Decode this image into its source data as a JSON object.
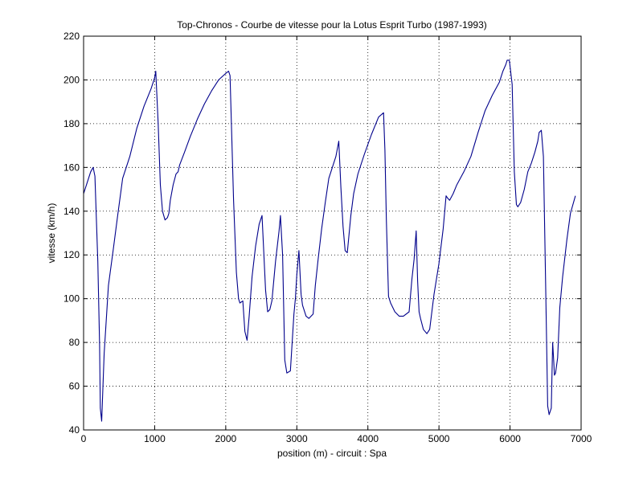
{
  "chart_data": {
    "type": "line",
    "title": "Top-Chronos - Courbe de vitesse pour la Lotus Esprit Turbo (1987-1993)",
    "xlabel": "position (m) - circuit : Spa",
    "ylabel": "vitesse (km/h)",
    "xlim": [
      0,
      7000
    ],
    "ylim": [
      40,
      220
    ],
    "xticks": [
      0,
      1000,
      2000,
      3000,
      4000,
      5000,
      6000,
      7000
    ],
    "yticks": [
      40,
      60,
      80,
      100,
      120,
      140,
      160,
      180,
      200,
      220
    ],
    "grid": true,
    "line_color": "#00008B",
    "series": [
      {
        "x": [
          0,
          50,
          100,
          135,
          160,
          200,
          225,
          235,
          255,
          290,
          350,
          420,
          480,
          550,
          650,
          750,
          850,
          950,
          1000,
          1015,
          1050,
          1080,
          1110,
          1145,
          1180,
          1200,
          1220,
          1260,
          1300,
          1330,
          1350,
          1420,
          1500,
          1600,
          1700,
          1800,
          1900,
          2000,
          2040,
          2060,
          2080,
          2110,
          2150,
          2180,
          2200,
          2240,
          2270,
          2300,
          2330,
          2370,
          2420,
          2470,
          2510,
          2530,
          2560,
          2590,
          2620,
          2650,
          2700,
          2750,
          2770,
          2800,
          2830,
          2860,
          2910,
          2960,
          2980,
          3000,
          3030,
          3060,
          3080,
          3130,
          3170,
          3230,
          3260,
          3300,
          3350,
          3400,
          3450,
          3500,
          3550,
          3590,
          3620,
          3650,
          3680,
          3710,
          3760,
          3800,
          3860,
          3950,
          4050,
          4150,
          4220,
          4240,
          4260,
          4290,
          4320,
          4380,
          4440,
          4500,
          4580,
          4620,
          4650,
          4680,
          4700,
          4720,
          4740,
          4780,
          4830,
          4870,
          4930,
          5000,
          5060,
          5100,
          5120,
          5150,
          5200,
          5250,
          5350,
          5450,
          5550,
          5650,
          5750,
          5850,
          5900,
          5940,
          5960,
          5990,
          6030,
          6060,
          6090,
          6110,
          6150,
          6200,
          6250,
          6300,
          6350,
          6390,
          6410,
          6440,
          6470,
          6500,
          6530,
          6550,
          6580,
          6600,
          6615,
          6625,
          6640,
          6670,
          6700,
          6740,
          6800,
          6850,
          6920
        ],
        "y": [
          148,
          153,
          158,
          160,
          156,
          117,
          79,
          50,
          44,
          75,
          106,
          123,
          138,
          155,
          165,
          178,
          188,
          196,
          201,
          204,
          180,
          152,
          140,
          136,
          137,
          139,
          145,
          152,
          157,
          158,
          161,
          167,
          174,
          182,
          189,
          195,
          200,
          203,
          204,
          202,
          180,
          145,
          112,
          100,
          98,
          99,
          85,
          81,
          92,
          110,
          124,
          134,
          138,
          125,
          104,
          94,
          95,
          99,
          117,
          131,
          138,
          120,
          72,
          66,
          67,
          93,
          100,
          111,
          122,
          102,
          97,
          92,
          91,
          93,
          106,
          118,
          132,
          144,
          155,
          160,
          165,
          172,
          151,
          133,
          122,
          121,
          138,
          148,
          157,
          166,
          175,
          183,
          185,
          168,
          136,
          101,
          98,
          94,
          92,
          92,
          94,
          109,
          118,
          131,
          108,
          94,
          91,
          86,
          84,
          86,
          102,
          116,
          132,
          147,
          146,
          145,
          148,
          152,
          158,
          165,
          176,
          186,
          193,
          199,
          204,
          207,
          209,
          209,
          198,
          158,
          143,
          142,
          144,
          150,
          158,
          162,
          167,
          172,
          176,
          177,
          165,
          108,
          51,
          47,
          50,
          80,
          71,
          65,
          66,
          73,
          96,
          110,
          127,
          139,
          147
        ]
      }
    ]
  }
}
